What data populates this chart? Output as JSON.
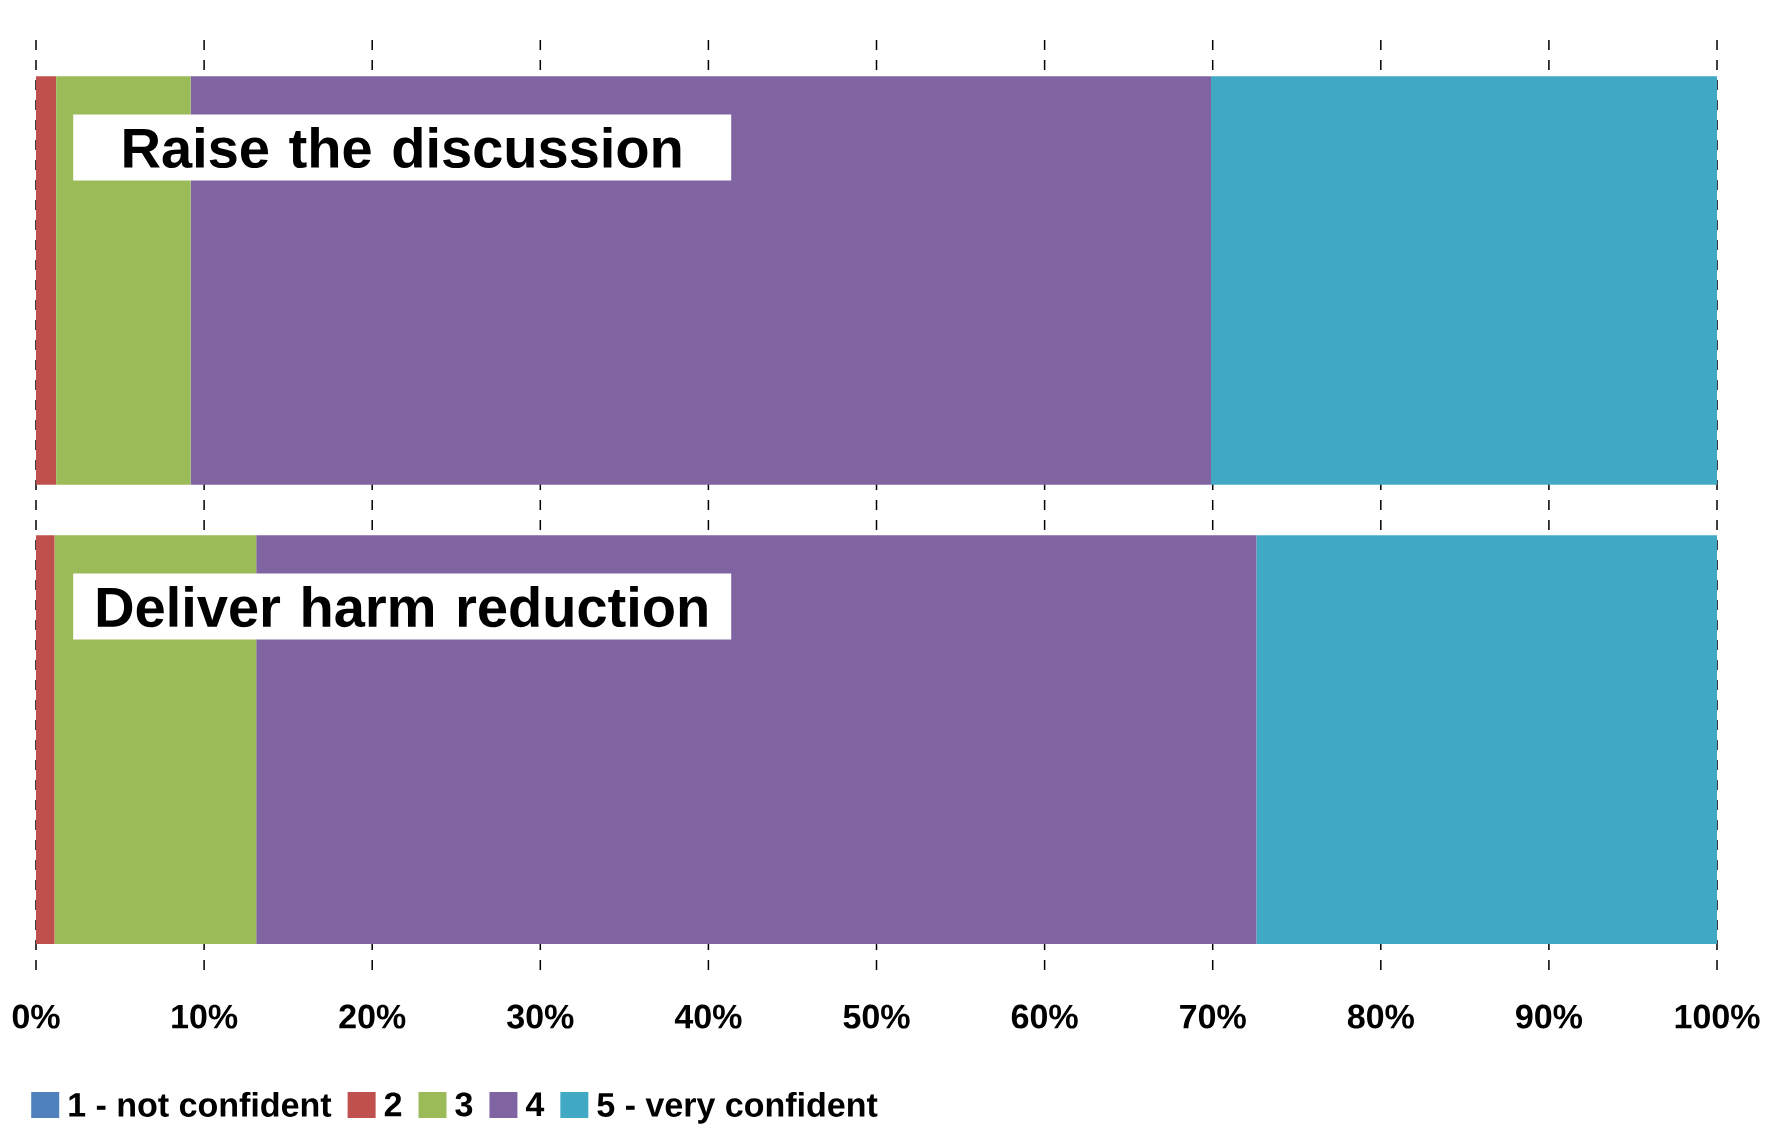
{
  "chart_data": {
    "type": "bar",
    "orientation": "horizontal",
    "stacked": true,
    "categories": [
      "Raise the discussion",
      "Deliver harm reduction"
    ],
    "series": [
      {
        "name": "1 - not confident",
        "color": "#4f81bd",
        "values": [
          0,
          0
        ]
      },
      {
        "name": "2",
        "color": "#c0504d",
        "values": [
          1.2,
          1.1
        ]
      },
      {
        "name": "3",
        "color": "#9bbb59",
        "values": [
          8.0,
          12.0
        ]
      },
      {
        "name": "4",
        "color": "#8064a2",
        "values": [
          60.7,
          59.5
        ]
      },
      {
        "name": "5 - very confident",
        "color": "#41a9c4",
        "values": [
          30.1,
          27.4
        ]
      }
    ],
    "xlim": [
      0,
      100
    ],
    "xticks": [
      {
        "value": 0,
        "label": "0%"
      },
      {
        "value": 10,
        "label": "10%"
      },
      {
        "value": 20,
        "label": "20%"
      },
      {
        "value": 30,
        "label": "30%"
      },
      {
        "value": 40,
        "label": "40%"
      },
      {
        "value": 50,
        "label": "50%"
      },
      {
        "value": 60,
        "label": "60%"
      },
      {
        "value": 70,
        "label": "70%"
      },
      {
        "value": 80,
        "label": "80%"
      },
      {
        "value": 90,
        "label": "90%"
      },
      {
        "value": 100,
        "label": "100%"
      }
    ],
    "grid": "x",
    "legend": "bottom"
  }
}
